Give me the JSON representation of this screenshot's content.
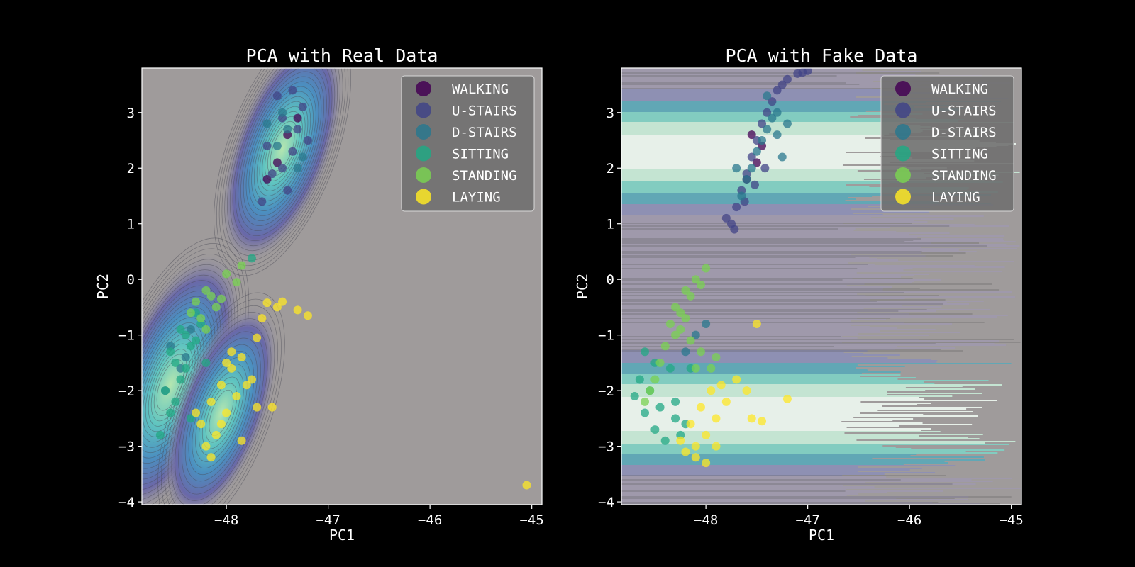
{
  "colors": {
    "figure_bg": "#000000",
    "axes_bg": "#9f9b9b",
    "text": "#ffffff",
    "legend_bg": "#707070",
    "WALKING": "#440154",
    "U-STAIRS": "#414487",
    "D-STAIRS": "#2a788e",
    "SITTING": "#22a884",
    "STANDING": "#7ad151",
    "LAYING": "#fde725"
  },
  "chart_data": [
    {
      "type": "scatter",
      "title": "PCA with Real Data",
      "xlabel": "PC1",
      "ylabel": "PC2",
      "xlim": [
        -48.83,
        -44.9
      ],
      "ylim": [
        -4.05,
        3.8
      ],
      "xticks": [
        -48,
        -47,
        -46,
        -45
      ],
      "yticks": [
        -4,
        -3,
        -2,
        -1,
        0,
        1,
        2,
        3
      ],
      "background": "kde-contours",
      "legend": {
        "position": "top-right",
        "entries": [
          "WALKING",
          "U-STAIRS",
          "D-STAIRS",
          "SITTING",
          "STANDING",
          "LAYING"
        ]
      },
      "series": [
        {
          "name": "WALKING",
          "color": "#440154",
          "x": [
            -47.4,
            -47.5,
            -47.3,
            -47.6
          ],
          "y": [
            2.6,
            2.1,
            2.9,
            1.8
          ]
        },
        {
          "name": "U-STAIRS",
          "color": "#414487",
          "x": [
            -47.45,
            -47.35,
            -47.55,
            -47.25,
            -47.6,
            -47.4,
            -47.3,
            -47.5,
            -47.2,
            -47.65,
            -47.45,
            -47.35
          ],
          "y": [
            2.9,
            2.3,
            1.9,
            3.1,
            2.4,
            1.6,
            2.7,
            3.3,
            2.5,
            1.4,
            2.0,
            3.4
          ]
        },
        {
          "name": "D-STAIRS",
          "color": "#2a788e",
          "x": [
            -47.5,
            -47.4,
            -47.3,
            -47.6,
            -47.45,
            -47.25,
            -48.55,
            -48.45,
            -48.35,
            -48.6,
            -48.4
          ],
          "y": [
            2.4,
            2.7,
            2.0,
            2.8,
            3.0,
            2.2,
            -1.2,
            -1.6,
            -0.9,
            -2.0,
            -1.4
          ]
        },
        {
          "name": "SITTING",
          "color": "#22a884",
          "x": [
            -48.6,
            -48.5,
            -48.4,
            -48.3,
            -48.55,
            -48.45,
            -48.35,
            -48.65,
            -48.25,
            -48.5,
            -48.4,
            -48.3,
            -48.2,
            -48.55,
            -48.45,
            -48.35,
            -47.75
          ],
          "y": [
            -2.0,
            -1.5,
            -1.0,
            -0.6,
            -2.4,
            -1.8,
            -1.2,
            -2.8,
            -0.8,
            -2.2,
            -1.6,
            -1.1,
            -1.5,
            -1.3,
            -0.9,
            -2.5,
            0.38
          ]
        },
        {
          "name": "STANDING",
          "color": "#7ad151",
          "x": [
            -48.3,
            -48.2,
            -48.1,
            -48.25,
            -48.15,
            -48.0,
            -47.9,
            -48.35,
            -47.85,
            -48.05,
            -48.2
          ],
          "y": [
            -0.4,
            -0.2,
            -0.5,
            -0.7,
            -0.3,
            0.1,
            -0.05,
            -0.6,
            0.25,
            -0.35,
            -0.9
          ]
        },
        {
          "name": "LAYING",
          "color": "#fde725",
          "x": [
            -48.25,
            -48.15,
            -48.05,
            -47.95,
            -47.85,
            -47.75,
            -48.2,
            -48.1,
            -48.0,
            -47.9,
            -47.8,
            -47.7,
            -48.15,
            -48.05,
            -47.95,
            -47.85,
            -48.3,
            -48.0,
            -47.6,
            -47.5,
            -47.45,
            -47.3,
            -47.2,
            -47.65,
            -47.7,
            -47.55,
            -45.05
          ],
          "y": [
            -2.6,
            -2.2,
            -1.9,
            -1.6,
            -1.4,
            -1.8,
            -3.0,
            -2.8,
            -2.4,
            -2.1,
            -1.9,
            -2.3,
            -3.2,
            -2.6,
            -1.3,
            -2.9,
            -2.4,
            -1.5,
            -0.42,
            -0.5,
            -0.4,
            -0.55,
            -0.65,
            -0.7,
            -1.05,
            -2.3,
            -3.7
          ]
        }
      ]
    },
    {
      "type": "scatter",
      "title": "PCA with Fake Data",
      "xlabel": "PC1",
      "ylabel": "PC2",
      "xlim": [
        -48.83,
        -44.9
      ],
      "ylim": [
        -4.05,
        3.8
      ],
      "xticks": [
        -48,
        -47,
        -46,
        -45
      ],
      "yticks": [
        -4,
        -3,
        -2,
        -1,
        0,
        1,
        2,
        3
      ],
      "background": "horizontal-density-bands",
      "legend": {
        "position": "top-right",
        "entries": [
          "WALKING",
          "U-STAIRS",
          "D-STAIRS",
          "SITTING",
          "STANDING",
          "LAYING"
        ]
      },
      "series": [
        {
          "name": "WALKING",
          "color": "#440154",
          "x": [
            -47.5,
            -47.6,
            -47.45,
            -47.55
          ],
          "y": [
            2.1,
            1.8,
            2.4,
            2.6
          ]
        },
        {
          "name": "U-STAIRS",
          "color": "#414487",
          "x": [
            -47.75,
            -47.7,
            -47.65,
            -47.6,
            -47.55,
            -47.5,
            -47.45,
            -47.4,
            -47.35,
            -47.3,
            -47.25,
            -47.2,
            -47.8,
            -47.72,
            -47.62,
            -47.52,
            -47.42,
            -47.1,
            -47.05,
            -47.0
          ],
          "y": [
            1.0,
            1.3,
            1.6,
            1.9,
            2.2,
            2.5,
            2.8,
            3.0,
            3.2,
            3.4,
            3.5,
            3.6,
            1.1,
            0.9,
            1.4,
            1.7,
            2.0,
            3.7,
            3.72,
            3.75
          ]
        },
        {
          "name": "D-STAIRS",
          "color": "#2a788e",
          "x": [
            -47.6,
            -47.5,
            -47.4,
            -47.3,
            -47.55,
            -47.45,
            -47.35,
            -47.25,
            -47.65,
            -47.7,
            -47.4,
            -47.3,
            -47.2,
            -48.1,
            -48.0,
            -48.2
          ],
          "y": [
            1.8,
            2.3,
            2.7,
            3.0,
            2.0,
            2.5,
            2.9,
            2.2,
            1.5,
            2.0,
            3.3,
            2.6,
            2.8,
            -1.0,
            -0.8,
            -1.3
          ]
        },
        {
          "name": "SITTING",
          "color": "#22a884",
          "x": [
            -48.7,
            -48.6,
            -48.5,
            -48.4,
            -48.3,
            -48.65,
            -48.55,
            -48.45,
            -48.35,
            -48.25,
            -48.6,
            -48.5,
            -48.2,
            -48.3,
            -48.15
          ],
          "y": [
            -2.1,
            -2.4,
            -2.7,
            -2.9,
            -2.5,
            -1.8,
            -2.0,
            -2.3,
            -1.6,
            -2.8,
            -1.3,
            -1.5,
            -2.6,
            -2.2,
            -1.6
          ]
        },
        {
          "name": "STANDING",
          "color": "#7ad151",
          "x": [
            -48.3,
            -48.2,
            -48.1,
            -48.0,
            -48.35,
            -48.25,
            -48.15,
            -48.05,
            -48.4,
            -48.3,
            -48.2,
            -48.45,
            -48.5,
            -48.55,
            -48.6,
            -48.1,
            -48.05,
            -47.95,
            -47.9,
            -48.25,
            -48.15
          ],
          "y": [
            -0.5,
            -0.2,
            0.0,
            0.2,
            -0.8,
            -0.6,
            -0.3,
            -0.1,
            -1.2,
            -1.0,
            -0.7,
            -1.5,
            -1.8,
            -2.0,
            -2.2,
            -1.6,
            -1.3,
            -1.6,
            -1.4,
            -0.9,
            -1.1
          ]
        },
        {
          "name": "LAYING",
          "color": "#fde725",
          "x": [
            -48.2,
            -48.1,
            -48.0,
            -47.9,
            -47.8,
            -48.15,
            -48.05,
            -47.95,
            -47.85,
            -48.25,
            -48.1,
            -48.0,
            -47.9,
            -47.7,
            -47.6,
            -47.55,
            -47.45,
            -47.2,
            -47.5
          ],
          "y": [
            -3.1,
            -3.0,
            -2.8,
            -2.5,
            -2.2,
            -2.6,
            -2.3,
            -2.0,
            -1.9,
            -2.9,
            -3.2,
            -3.3,
            -3.0,
            -1.8,
            -2.0,
            -2.5,
            -2.55,
            -2.15,
            -0.8
          ]
        }
      ]
    }
  ]
}
